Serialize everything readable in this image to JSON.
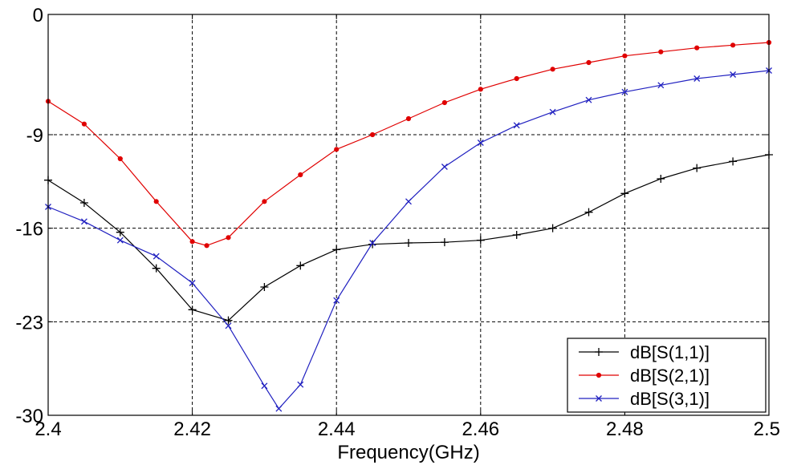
{
  "chart_data": {
    "type": "line",
    "title": "",
    "xlabel": "Frequency(GHz)",
    "ylabel": "",
    "xlim": [
      2.4,
      2.5
    ],
    "ylim": [
      -30,
      0
    ],
    "xticks": [
      2.4,
      2.42,
      2.44,
      2.46,
      2.48,
      2.5
    ],
    "xtick_labels": [
      "2.4",
      "2.42",
      "2.44",
      "2.46",
      "2.48",
      "2.5"
    ],
    "yticks": [
      0,
      -9,
      -16,
      -23,
      -30
    ],
    "ytick_labels": [
      "0",
      "-9",
      "-16",
      "-23",
      "-30"
    ],
    "grid": true,
    "legend_position": "bottom-right",
    "series": [
      {
        "name": "dB[S(1,1)]",
        "color": "#000000",
        "marker": "plus",
        "points": [
          [
            2.4,
            -12.4
          ],
          [
            2.405,
            -14.1
          ],
          [
            2.41,
            -16.3
          ],
          [
            2.415,
            -19.0
          ],
          [
            2.42,
            -22.1
          ],
          [
            2.425,
            -22.9
          ],
          [
            2.43,
            -20.4
          ],
          [
            2.435,
            -18.8
          ],
          [
            2.44,
            -17.6
          ],
          [
            2.445,
            -17.2
          ],
          [
            2.45,
            -17.1
          ],
          [
            2.455,
            -17.05
          ],
          [
            2.46,
            -16.9
          ],
          [
            2.465,
            -16.5
          ],
          [
            2.47,
            -16.0
          ],
          [
            2.475,
            -14.8
          ],
          [
            2.48,
            -13.4
          ],
          [
            2.485,
            -12.3
          ],
          [
            2.49,
            -11.5
          ],
          [
            2.495,
            -11.0
          ],
          [
            2.5,
            -10.5
          ]
        ]
      },
      {
        "name": "dB[S(2,1)]",
        "color": "#e00000",
        "marker": "dot",
        "points": [
          [
            2.4,
            -6.5
          ],
          [
            2.405,
            -8.2
          ],
          [
            2.41,
            -10.8
          ],
          [
            2.415,
            -14.0
          ],
          [
            2.42,
            -17.0
          ],
          [
            2.422,
            -17.3
          ],
          [
            2.425,
            -16.7
          ],
          [
            2.43,
            -14.0
          ],
          [
            2.435,
            -12.0
          ],
          [
            2.44,
            -10.1
          ],
          [
            2.445,
            -9.0
          ],
          [
            2.45,
            -7.8
          ],
          [
            2.455,
            -6.6
          ],
          [
            2.46,
            -5.6
          ],
          [
            2.465,
            -4.8
          ],
          [
            2.47,
            -4.1
          ],
          [
            2.475,
            -3.6
          ],
          [
            2.48,
            -3.1
          ],
          [
            2.485,
            -2.8
          ],
          [
            2.49,
            -2.5
          ],
          [
            2.495,
            -2.3
          ],
          [
            2.5,
            -2.1
          ]
        ]
      },
      {
        "name": "dB[S(3,1)]",
        "color": "#2020c0",
        "marker": "x",
        "points": [
          [
            2.4,
            -14.4
          ],
          [
            2.405,
            -15.5
          ],
          [
            2.41,
            -16.9
          ],
          [
            2.415,
            -18.1
          ],
          [
            2.42,
            -20.1
          ],
          [
            2.425,
            -23.3
          ],
          [
            2.43,
            -27.8
          ],
          [
            2.432,
            -29.5
          ],
          [
            2.435,
            -27.7
          ],
          [
            2.44,
            -21.4
          ],
          [
            2.445,
            -17.1
          ],
          [
            2.45,
            -14.0
          ],
          [
            2.455,
            -11.4
          ],
          [
            2.46,
            -9.6
          ],
          [
            2.465,
            -8.3
          ],
          [
            2.47,
            -7.3
          ],
          [
            2.475,
            -6.4
          ],
          [
            2.48,
            -5.8
          ],
          [
            2.485,
            -5.3
          ],
          [
            2.49,
            -4.8
          ],
          [
            2.495,
            -4.5
          ],
          [
            2.5,
            -4.2
          ]
        ]
      }
    ]
  }
}
